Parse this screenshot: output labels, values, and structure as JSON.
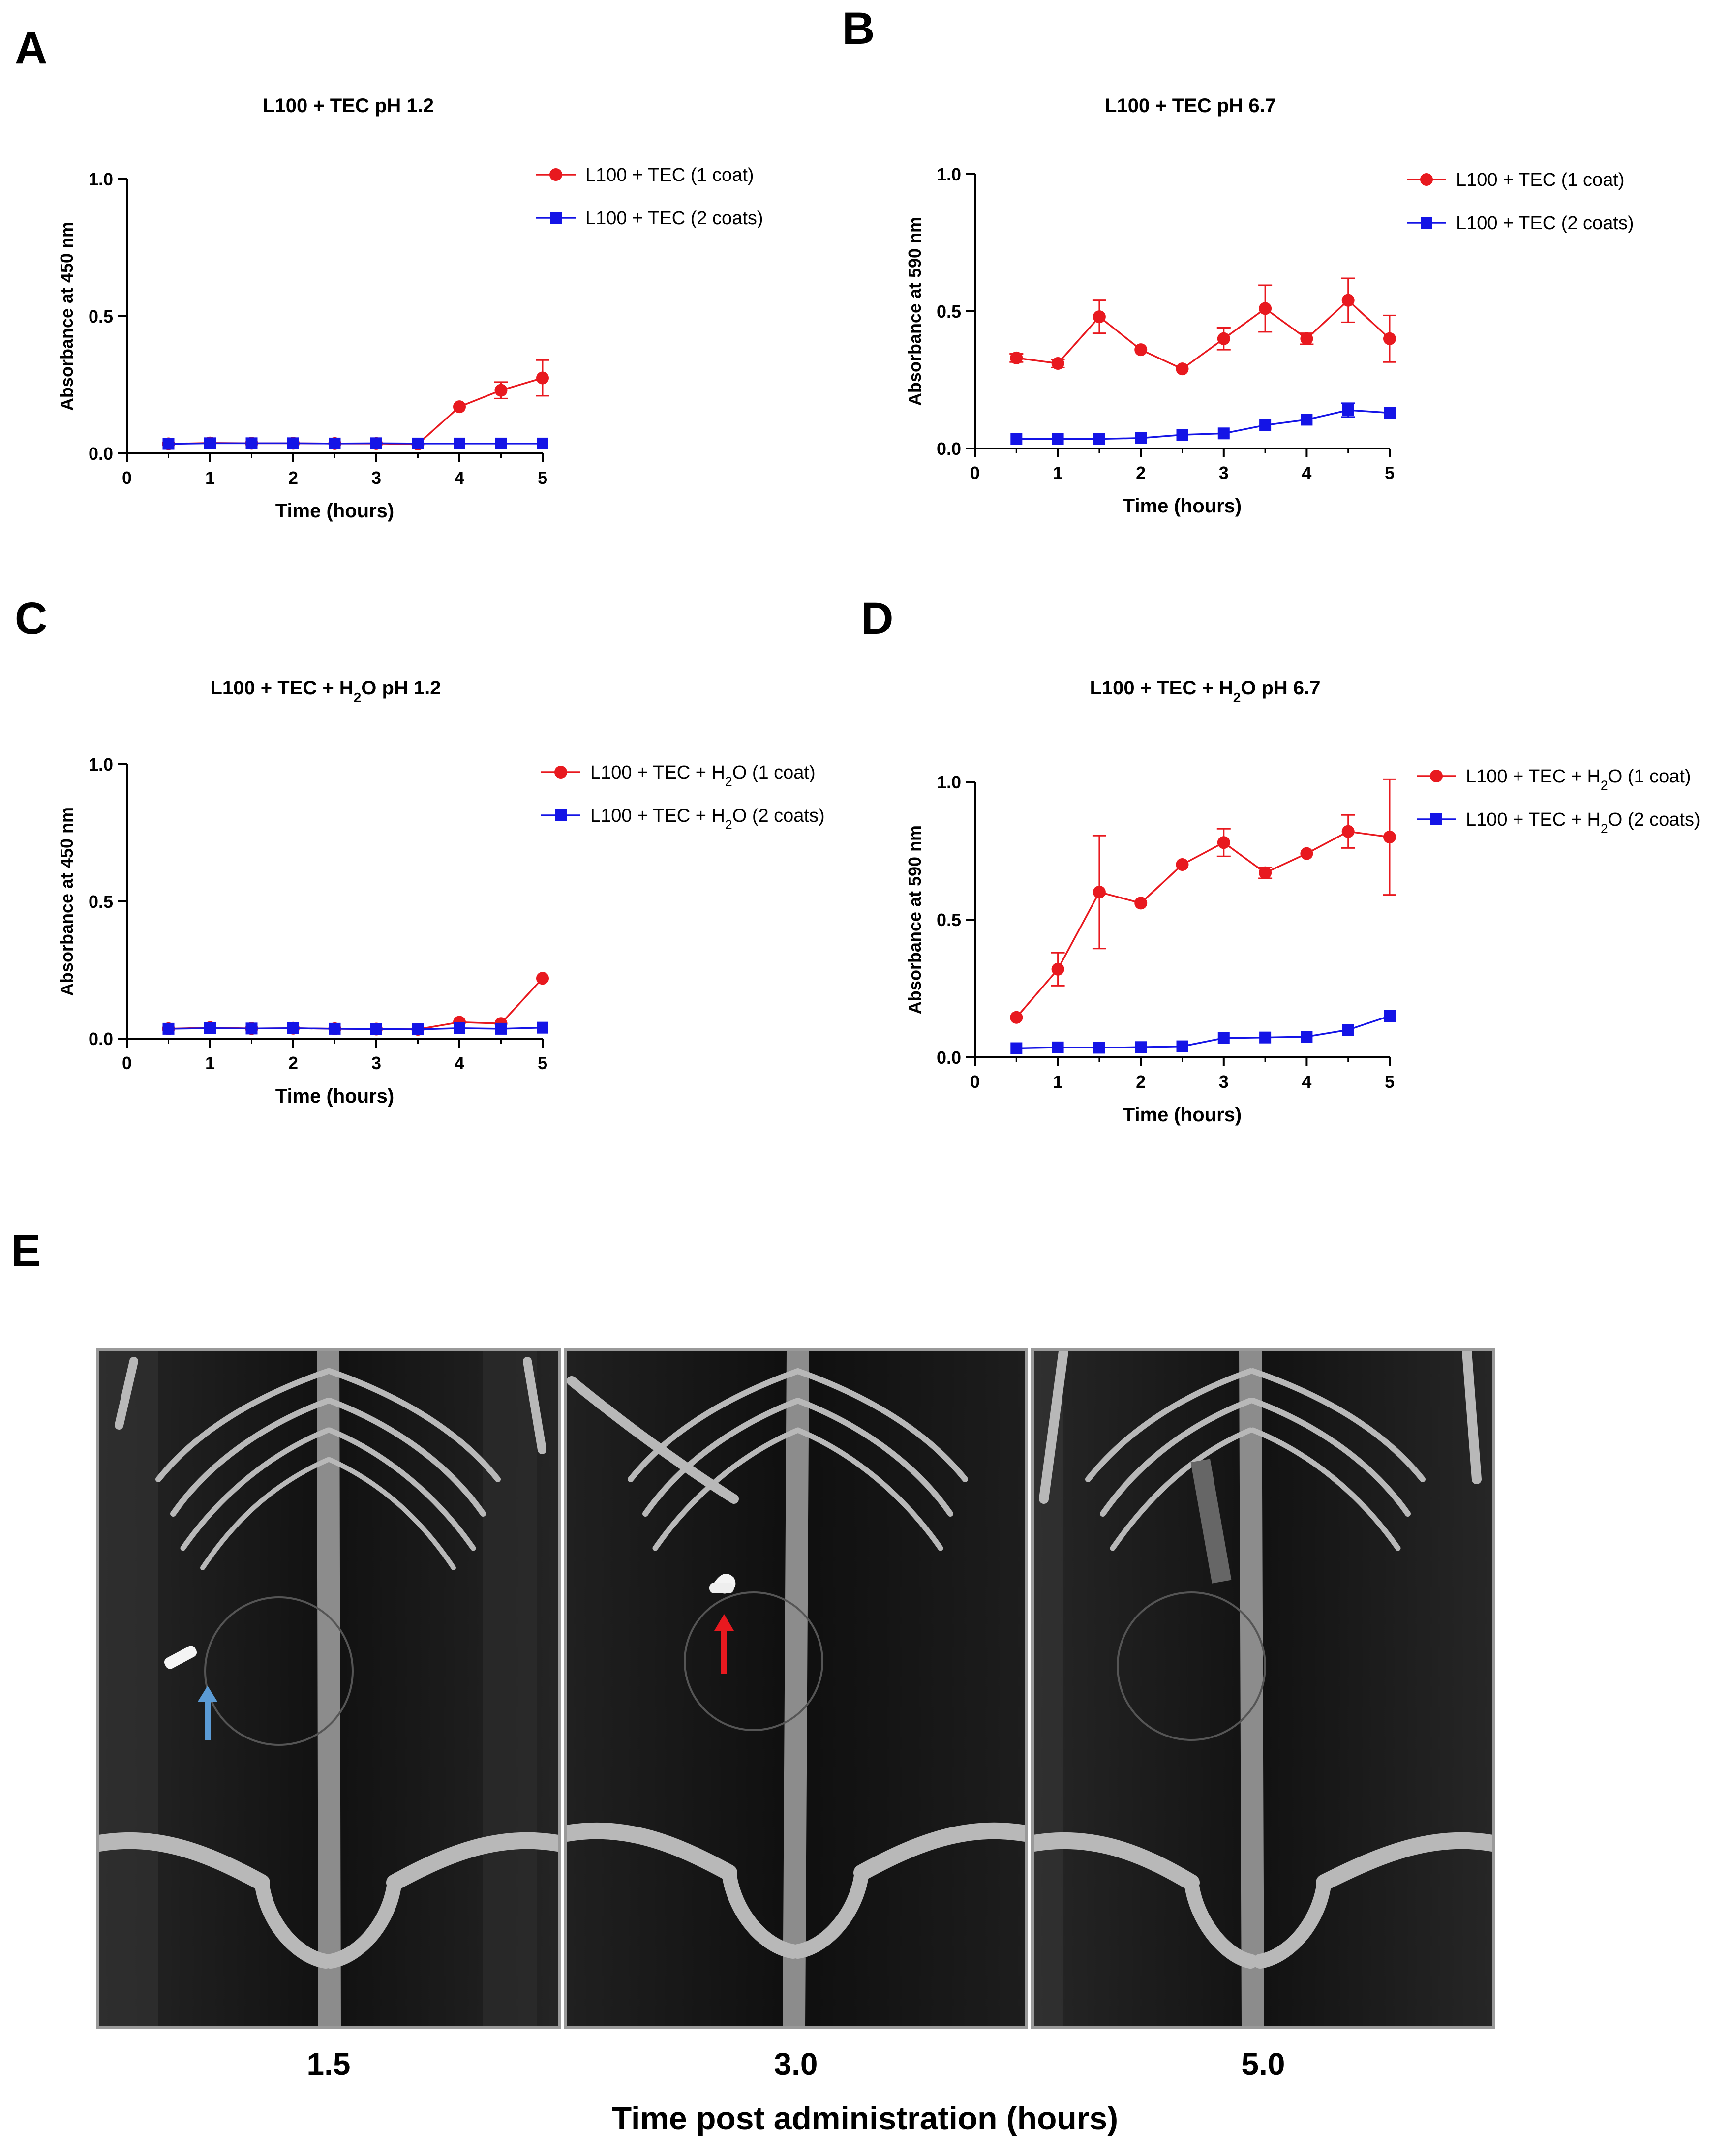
{
  "panel_letters": {
    "a": "A",
    "b": "B",
    "c": "C",
    "d": "D",
    "e": "E"
  },
  "chart_data": [
    {
      "panel": "A",
      "type": "line",
      "title": "L100 + TEC pH 1.2",
      "xlabel": "Time (hours)",
      "ylabel": "Absorbance at 450 nm",
      "xlim": [
        0,
        5
      ],
      "ylim": [
        0,
        1.0
      ],
      "xticks": [
        "0",
        "1",
        "2",
        "3",
        "4",
        "5"
      ],
      "yticks": [
        "0.0",
        "0.5",
        "1.0"
      ],
      "legend_position": "top-right",
      "x": [
        0.5,
        1,
        1.5,
        2,
        2.5,
        3,
        3.5,
        4,
        4.5,
        5
      ],
      "series": [
        {
          "name": "L100 + TEC (1 coat)",
          "color": "#e8191f",
          "marker": "circle",
          "values": [
            0.035,
            0.038,
            0.037,
            0.037,
            0.036,
            0.036,
            0.034,
            0.17,
            0.23,
            0.275
          ],
          "errors": [
            0,
            0,
            0,
            0,
            0,
            0,
            0,
            0,
            0.03,
            0.065
          ]
        },
        {
          "name": "L100 + TEC (2 coats)",
          "color": "#1414e6",
          "marker": "square",
          "values": [
            0.035,
            0.037,
            0.037,
            0.037,
            0.036,
            0.037,
            0.036,
            0.036,
            0.036,
            0.036
          ],
          "errors": [
            0,
            0,
            0,
            0,
            0,
            0,
            0,
            0,
            0,
            0
          ]
        }
      ]
    },
    {
      "panel": "B",
      "type": "line",
      "title": "L100 + TEC  pH 6.7",
      "xlabel": "Time (hours)",
      "ylabel": "Absorbance at 590 nm",
      "xlim": [
        0,
        5
      ],
      "ylim": [
        0,
        1.0
      ],
      "xticks": [
        "0",
        "1",
        "2",
        "3",
        "4",
        "5"
      ],
      "yticks": [
        "0.0",
        "0.5",
        "1.0"
      ],
      "legend_position": "top-right",
      "x": [
        0.5,
        1,
        1.5,
        2,
        2.5,
        3,
        3.5,
        4,
        4.5,
        5
      ],
      "series": [
        {
          "name": "L100 + TEC (1 coat)",
          "color": "#e8191f",
          "marker": "circle",
          "values": [
            0.33,
            0.31,
            0.48,
            0.36,
            0.29,
            0.4,
            0.51,
            0.4,
            0.54,
            0.4
          ],
          "errors": [
            0.015,
            0.015,
            0.06,
            0,
            0,
            0.04,
            0.085,
            0.02,
            0.08,
            0.085
          ]
        },
        {
          "name": "L100 + TEC (2 coats)",
          "color": "#1414e6",
          "marker": "square",
          "values": [
            0.035,
            0.035,
            0.035,
            0.038,
            0.05,
            0.055,
            0.085,
            0.105,
            0.14,
            0.13
          ],
          "errors": [
            0,
            0,
            0,
            0,
            0,
            0,
            0,
            0,
            0.025,
            0
          ]
        }
      ]
    },
    {
      "panel": "C",
      "type": "line",
      "title": "L100 + TEC + H",
      "title_sub": "2",
      "title_tail": "O pH 1.2",
      "xlabel": "Time (hours)",
      "ylabel": "Absorbance at 450 nm",
      "xlim": [
        0,
        5
      ],
      "ylim": [
        0,
        1.0
      ],
      "xticks": [
        "0",
        "1",
        "2",
        "3",
        "4",
        "5"
      ],
      "yticks": [
        "0.0",
        "0.5",
        "1.0"
      ],
      "legend_position": "top-right",
      "x": [
        0.5,
        1,
        1.5,
        2,
        2.5,
        3,
        3.5,
        4,
        4.5,
        5
      ],
      "series": [
        {
          "name": "L100 + TEC + H",
          "name_sub": "2",
          "name_tail": "O (1 coat)",
          "color": "#e8191f",
          "marker": "circle",
          "values": [
            0.036,
            0.04,
            0.037,
            0.038,
            0.036,
            0.035,
            0.034,
            0.06,
            0.055,
            0.22
          ],
          "errors": [
            0,
            0,
            0,
            0,
            0,
            0,
            0,
            0,
            0,
            0
          ]
        },
        {
          "name": "L100 + TEC + H",
          "name_sub": "2",
          "name_tail": "O (2 coats)",
          "color": "#1414e6",
          "marker": "square",
          "values": [
            0.036,
            0.038,
            0.037,
            0.038,
            0.036,
            0.035,
            0.034,
            0.038,
            0.036,
            0.04
          ],
          "errors": [
            0,
            0,
            0,
            0,
            0,
            0,
            0,
            0,
            0,
            0
          ]
        }
      ]
    },
    {
      "panel": "D",
      "type": "line",
      "title": "L100 + TEC + H",
      "title_sub": "2",
      "title_tail": "O pH 6.7",
      "xlabel": "Time (hours)",
      "ylabel": "Absorbance at 590 nm",
      "xlim": [
        0,
        5
      ],
      "ylim": [
        0,
        1.0
      ],
      "xticks": [
        "0",
        "1",
        "2",
        "3",
        "4",
        "5"
      ],
      "yticks": [
        "0.0",
        "0.5",
        "1.0"
      ],
      "legend_position": "top-right",
      "x": [
        0.5,
        1,
        1.5,
        2,
        2.5,
        3,
        3.5,
        4,
        4.5,
        5
      ],
      "series": [
        {
          "name": "L100 + TEC + H",
          "name_sub": "2",
          "name_tail": "O (1 coat)",
          "color": "#e8191f",
          "marker": "circle",
          "values": [
            0.145,
            0.32,
            0.6,
            0.56,
            0.7,
            0.78,
            0.67,
            0.74,
            0.82,
            0.8
          ],
          "errors": [
            0,
            0.06,
            0.205,
            0,
            0,
            0.05,
            0.02,
            0,
            0.06,
            0.21
          ]
        },
        {
          "name": "L100 + TEC + H",
          "name_sub": "2",
          "name_tail": "O (2 coats)",
          "color": "#1414e6",
          "marker": "square",
          "values": [
            0.033,
            0.036,
            0.035,
            0.037,
            0.04,
            0.07,
            0.072,
            0.075,
            0.1,
            0.15
          ],
          "errors": [
            0,
            0,
            0,
            0,
            0,
            0,
            0,
            0,
            0,
            0
          ]
        }
      ]
    }
  ],
  "xray": {
    "images": [
      {
        "time": "1.5",
        "arrow_color": "#5b9bd5"
      },
      {
        "time": "3.0",
        "arrow_color": "#e8191f"
      },
      {
        "time": "5.0",
        "arrow_color": ""
      }
    ],
    "caption": "Time post administration  (hours)"
  }
}
